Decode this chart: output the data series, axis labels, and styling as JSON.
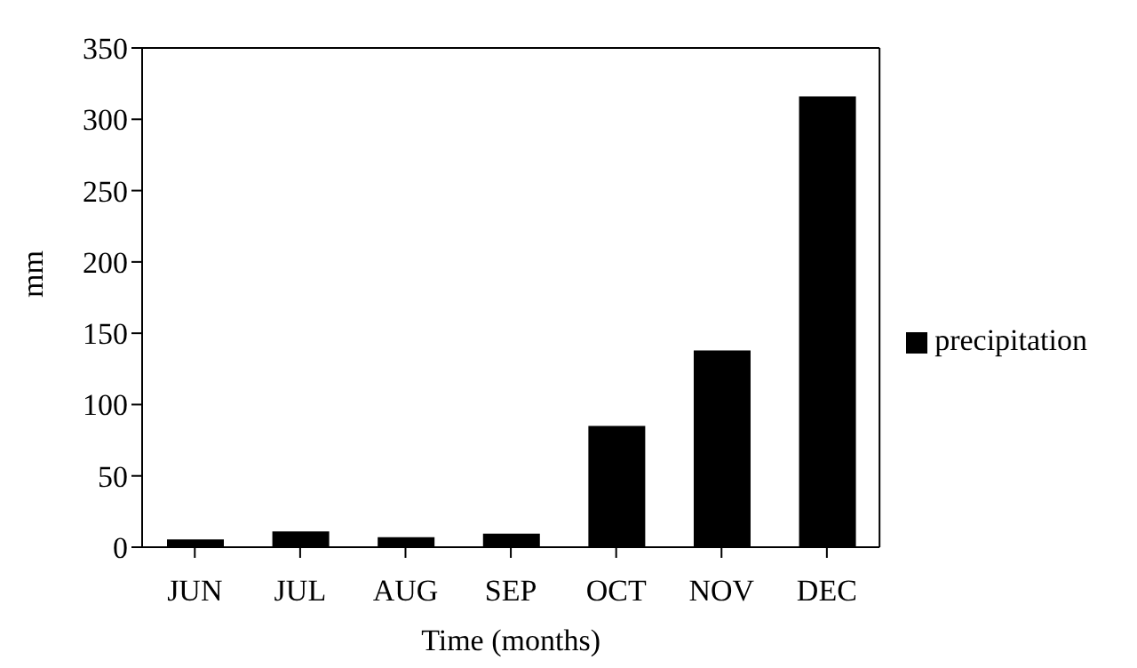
{
  "chart_data": {
    "type": "bar",
    "xlabel": "Time (months)",
    "ylabel": "mm",
    "categories": [
      "JUN",
      "JUL",
      "AUG",
      "SEP",
      "OCT",
      "NOV",
      "DEC"
    ],
    "series": [
      {
        "name": "precipitation",
        "color": "#000000",
        "values": [
          5.5,
          11,
          7,
          9.5,
          85,
          138,
          316
        ]
      }
    ],
    "ylim": [
      0,
      350
    ],
    "yticks": [
      0,
      50,
      100,
      150,
      200,
      250,
      300,
      350
    ],
    "grid": false,
    "legend": "right"
  }
}
